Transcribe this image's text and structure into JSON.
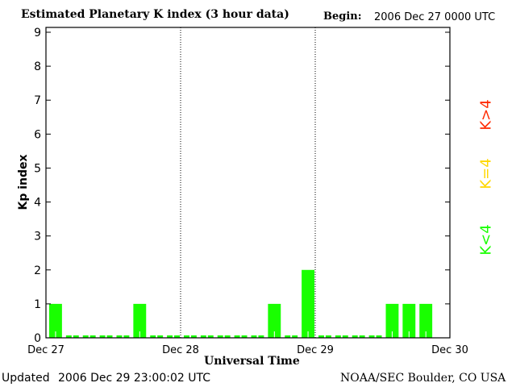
{
  "chart_data": {
    "type": "bar",
    "title": "Estimated Planetary K index (3 hour data)",
    "begin_label": "Begin:",
    "begin_value": "2006 Dec 27 0000 UTC",
    "xlabel": "Universal Time",
    "ylabel": "Kp index",
    "ylim": [
      0,
      9
    ],
    "yticks": [
      "0",
      "1",
      "2",
      "3",
      "4",
      "5",
      "6",
      "7",
      "8",
      "9"
    ],
    "xticks": [
      "Dec 27",
      "Dec 28",
      "Dec 29",
      "Dec 30"
    ],
    "interval_hours": 3,
    "values": [
      1,
      0,
      0,
      0,
      0,
      1,
      0,
      0,
      0,
      0,
      0,
      0,
      0,
      1,
      0,
      2,
      0,
      0,
      0,
      0,
      1,
      1,
      1
    ],
    "bar_color": "#19ff00",
    "legend": [
      {
        "label": "K<4",
        "color": "#19ff00"
      },
      {
        "label": "K=4",
        "color": "#ffd700"
      },
      {
        "label": "K>4",
        "color": "#ff2a00"
      }
    ]
  },
  "footer": {
    "updated_label": "Updated",
    "updated_value": "2006 Dec 29 23:00:02 UTC",
    "credit": "NOAA/SEC Boulder, CO USA"
  }
}
